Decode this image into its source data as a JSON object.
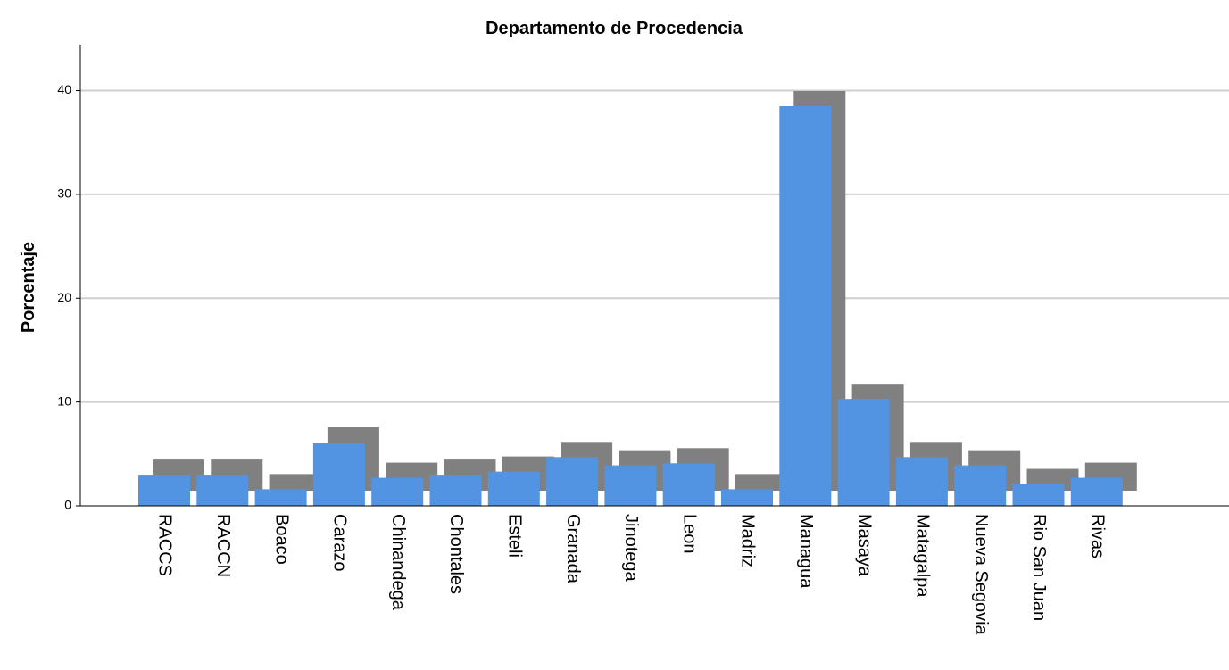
{
  "chart_data": {
    "type": "bar",
    "title": "Departamento de Procedencia",
    "y_label": "Porcentaje",
    "categories": [
      "RACCS",
      "RACCN",
      "Boaco",
      "Carazo",
      "Chinandega",
      "Chontales",
      "Esteli",
      "Granada",
      "Jinotega",
      "Leon",
      "Madriz",
      "Managua",
      "Masaya",
      "Matagalpa",
      "Nueva Segovia",
      "Rio San Juan",
      "Rivas"
    ],
    "values": [
      3.0,
      3.0,
      1.6,
      6.1,
      2.7,
      3.0,
      3.3,
      4.7,
      3.9,
      4.1,
      1.6,
      38.5,
      10.3,
      4.7,
      3.9,
      2.1,
      2.7
    ],
    "color": "#5294e2",
    "ylim": [
      0,
      44
    ],
    "yticks": [
      0,
      10,
      20,
      30,
      40
    ],
    "grid": true
  }
}
